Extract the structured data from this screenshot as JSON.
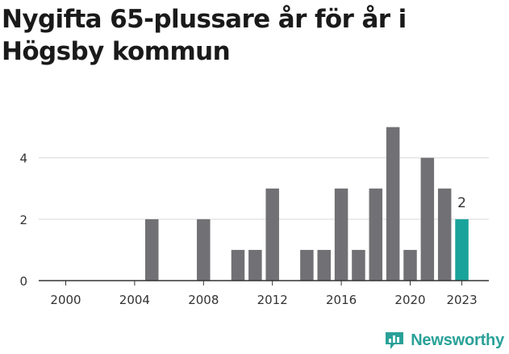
{
  "chart_data": {
    "type": "bar",
    "title": "Nygifta 65-plussare år för år i Högsby kommun",
    "xlabel": "",
    "ylabel": "",
    "categories": [
      2000,
      2001,
      2002,
      2003,
      2004,
      2005,
      2006,
      2007,
      2008,
      2009,
      2010,
      2011,
      2012,
      2013,
      2014,
      2015,
      2016,
      2017,
      2018,
      2019,
      2020,
      2021,
      2022,
      2023
    ],
    "values": [
      0,
      0,
      0,
      0,
      0,
      2,
      0,
      0,
      2,
      0,
      1,
      1,
      3,
      0,
      1,
      1,
      3,
      1,
      3,
      5,
      1,
      4,
      3,
      2
    ],
    "ylim": [
      0,
      5.2
    ],
    "y_ticks": [
      "0",
      "2",
      "4"
    ],
    "x_ticks": [
      "2000",
      "2004",
      "2008",
      "2012",
      "2016",
      "2020",
      "2023"
    ],
    "grid": true,
    "highlight": {
      "category": 2023,
      "label": "2"
    },
    "colors": {
      "bar": "#717074",
      "highlight": "#1aa39a",
      "grid": "#d9d9d9",
      "axis": "#333333",
      "text": "#333333"
    }
  },
  "brand": {
    "name": "Newsworthy",
    "logo_icon": "newsworthy-logo-icon",
    "color": "#2aa198"
  }
}
